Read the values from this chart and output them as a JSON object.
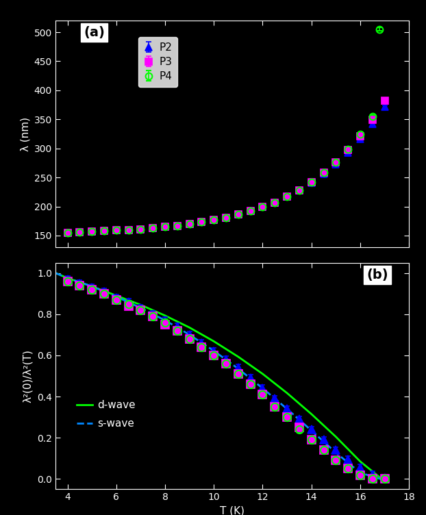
{
  "background_color": "#000000",
  "axes_facecolor": "#000000",
  "tick_color": "#ffffff",
  "spine_color": "#ffffff",
  "label_color": "#ffffff",
  "panel_a_label": "(a)",
  "panel_b_label": "(b)",
  "P2_color": "#0000ff",
  "P3_color": "#ff00ff",
  "P4_color": "#00ff00",
  "dwave_color": "#00ff00",
  "swave_color": "#0088ff",
  "panel_a": {
    "T_P2": [
      4.0,
      4.5,
      5.0,
      5.5,
      6.0,
      6.5,
      7.0,
      7.5,
      8.0,
      8.5,
      9.0,
      9.5,
      10.0,
      10.5,
      11.0,
      11.5,
      12.0,
      12.5,
      13.0,
      13.5,
      14.0,
      14.5,
      15.0,
      15.5,
      16.0,
      16.5,
      17.0
    ],
    "lam_P2": [
      155,
      156,
      157,
      158,
      159,
      160,
      161,
      163,
      165,
      167,
      170,
      173,
      177,
      181,
      186,
      192,
      199,
      207,
      217,
      228,
      241,
      256,
      273,
      293,
      316,
      342,
      371
    ],
    "T_P3": [
      4.0,
      4.5,
      5.0,
      5.5,
      6.0,
      6.5,
      7.0,
      7.5,
      8.0,
      8.5,
      9.0,
      9.5,
      10.0,
      10.5,
      11.0,
      11.5,
      12.0,
      12.5,
      13.0,
      13.5,
      14.0,
      14.5,
      15.0,
      15.5,
      16.0,
      16.5,
      17.0
    ],
    "lam_P3": [
      155,
      156,
      157,
      158,
      159,
      160,
      161,
      163,
      165,
      167,
      170,
      173,
      177,
      181,
      186,
      192,
      199,
      207,
      217,
      228,
      242,
      258,
      276,
      297,
      321,
      349,
      382
    ],
    "T_P4": [
      4.0,
      4.5,
      5.0,
      5.5,
      6.0,
      6.5,
      7.0,
      7.5,
      8.0,
      8.5,
      9.0,
      9.5,
      10.0,
      10.5,
      11.0,
      11.5,
      12.0,
      12.5,
      13.0,
      13.5,
      14.0,
      14.5,
      15.0,
      15.5,
      16.0,
      16.5,
      16.8
    ],
    "lam_P4": [
      155,
      156,
      157,
      158,
      159,
      160,
      161,
      163,
      165,
      167,
      170,
      173,
      177,
      181,
      186,
      192,
      199,
      207,
      217,
      228,
      242,
      258,
      276,
      298,
      324,
      355,
      505
    ],
    "yerr": 3,
    "xlabel": "T (K)",
    "ylabel": "λ (nm)",
    "xlim": [
      3.5,
      18.0
    ],
    "ylim": [
      130,
      520
    ]
  },
  "panel_b": {
    "T_P2": [
      4.0,
      4.5,
      5.0,
      5.5,
      6.0,
      6.5,
      7.0,
      7.5,
      8.0,
      8.5,
      9.0,
      9.5,
      10.0,
      10.5,
      11.0,
      11.5,
      12.0,
      12.5,
      13.0,
      13.5,
      14.0,
      14.5,
      15.0,
      15.5,
      16.0,
      16.5,
      17.0
    ],
    "rho_P2": [
      0.97,
      0.95,
      0.93,
      0.91,
      0.88,
      0.86,
      0.83,
      0.8,
      0.77,
      0.74,
      0.7,
      0.66,
      0.62,
      0.58,
      0.54,
      0.49,
      0.44,
      0.39,
      0.34,
      0.29,
      0.24,
      0.19,
      0.14,
      0.095,
      0.055,
      0.022,
      0.003
    ],
    "T_P3": [
      4.0,
      4.5,
      5.0,
      5.5,
      6.0,
      6.5,
      7.0,
      7.5,
      8.0,
      8.5,
      9.0,
      9.5,
      10.0,
      10.5,
      11.0,
      11.5,
      12.0,
      12.5,
      13.0,
      13.5,
      14.0,
      14.5,
      15.0,
      15.5,
      16.0,
      16.5,
      17.0
    ],
    "rho_P3": [
      0.96,
      0.94,
      0.92,
      0.9,
      0.87,
      0.84,
      0.82,
      0.79,
      0.75,
      0.72,
      0.68,
      0.64,
      0.6,
      0.56,
      0.51,
      0.46,
      0.41,
      0.35,
      0.3,
      0.25,
      0.19,
      0.14,
      0.092,
      0.052,
      0.019,
      0.002,
      0.0
    ],
    "T_P4": [
      4.0,
      4.5,
      5.0,
      5.5,
      6.0,
      6.5,
      7.0,
      7.5,
      8.0,
      8.5,
      9.0,
      9.5,
      10.0,
      10.5,
      11.0,
      11.5,
      12.0,
      12.5,
      13.0,
      13.5,
      14.0,
      14.5,
      15.0,
      15.5,
      16.0,
      16.5,
      17.0
    ],
    "rho_P4": [
      0.96,
      0.94,
      0.92,
      0.9,
      0.87,
      0.85,
      0.82,
      0.79,
      0.76,
      0.72,
      0.68,
      0.64,
      0.6,
      0.56,
      0.51,
      0.46,
      0.41,
      0.35,
      0.3,
      0.24,
      0.19,
      0.14,
      0.091,
      0.05,
      0.018,
      0.002,
      0.0
    ],
    "T_dwave": [
      3.5,
      4.0,
      5.0,
      6.0,
      7.0,
      8.0,
      9.0,
      10.0,
      11.0,
      12.0,
      13.0,
      14.0,
      15.0,
      16.0,
      16.8,
      17.0
    ],
    "rho_dwave": [
      1.0,
      0.975,
      0.935,
      0.89,
      0.845,
      0.793,
      0.735,
      0.668,
      0.593,
      0.51,
      0.417,
      0.315,
      0.205,
      0.085,
      0.008,
      0.0
    ],
    "T_swave": [
      3.5,
      4.0,
      5.0,
      6.0,
      7.0,
      8.0,
      9.0,
      10.0,
      11.0,
      12.0,
      13.0,
      14.0,
      15.0,
      16.0,
      16.8,
      17.0
    ],
    "rho_swave": [
      1.0,
      0.975,
      0.935,
      0.885,
      0.83,
      0.77,
      0.7,
      0.622,
      0.535,
      0.44,
      0.34,
      0.235,
      0.128,
      0.03,
      0.001,
      0.0
    ],
    "yerr": 0.015,
    "xlabel": "T (K)",
    "ylabel": "λ²(0)/λ²(T)",
    "xlim": [
      3.5,
      18.0
    ],
    "ylim": [
      -0.05,
      1.05
    ],
    "legend_line1": "d-wave",
    "legend_line2": "s-wave"
  }
}
